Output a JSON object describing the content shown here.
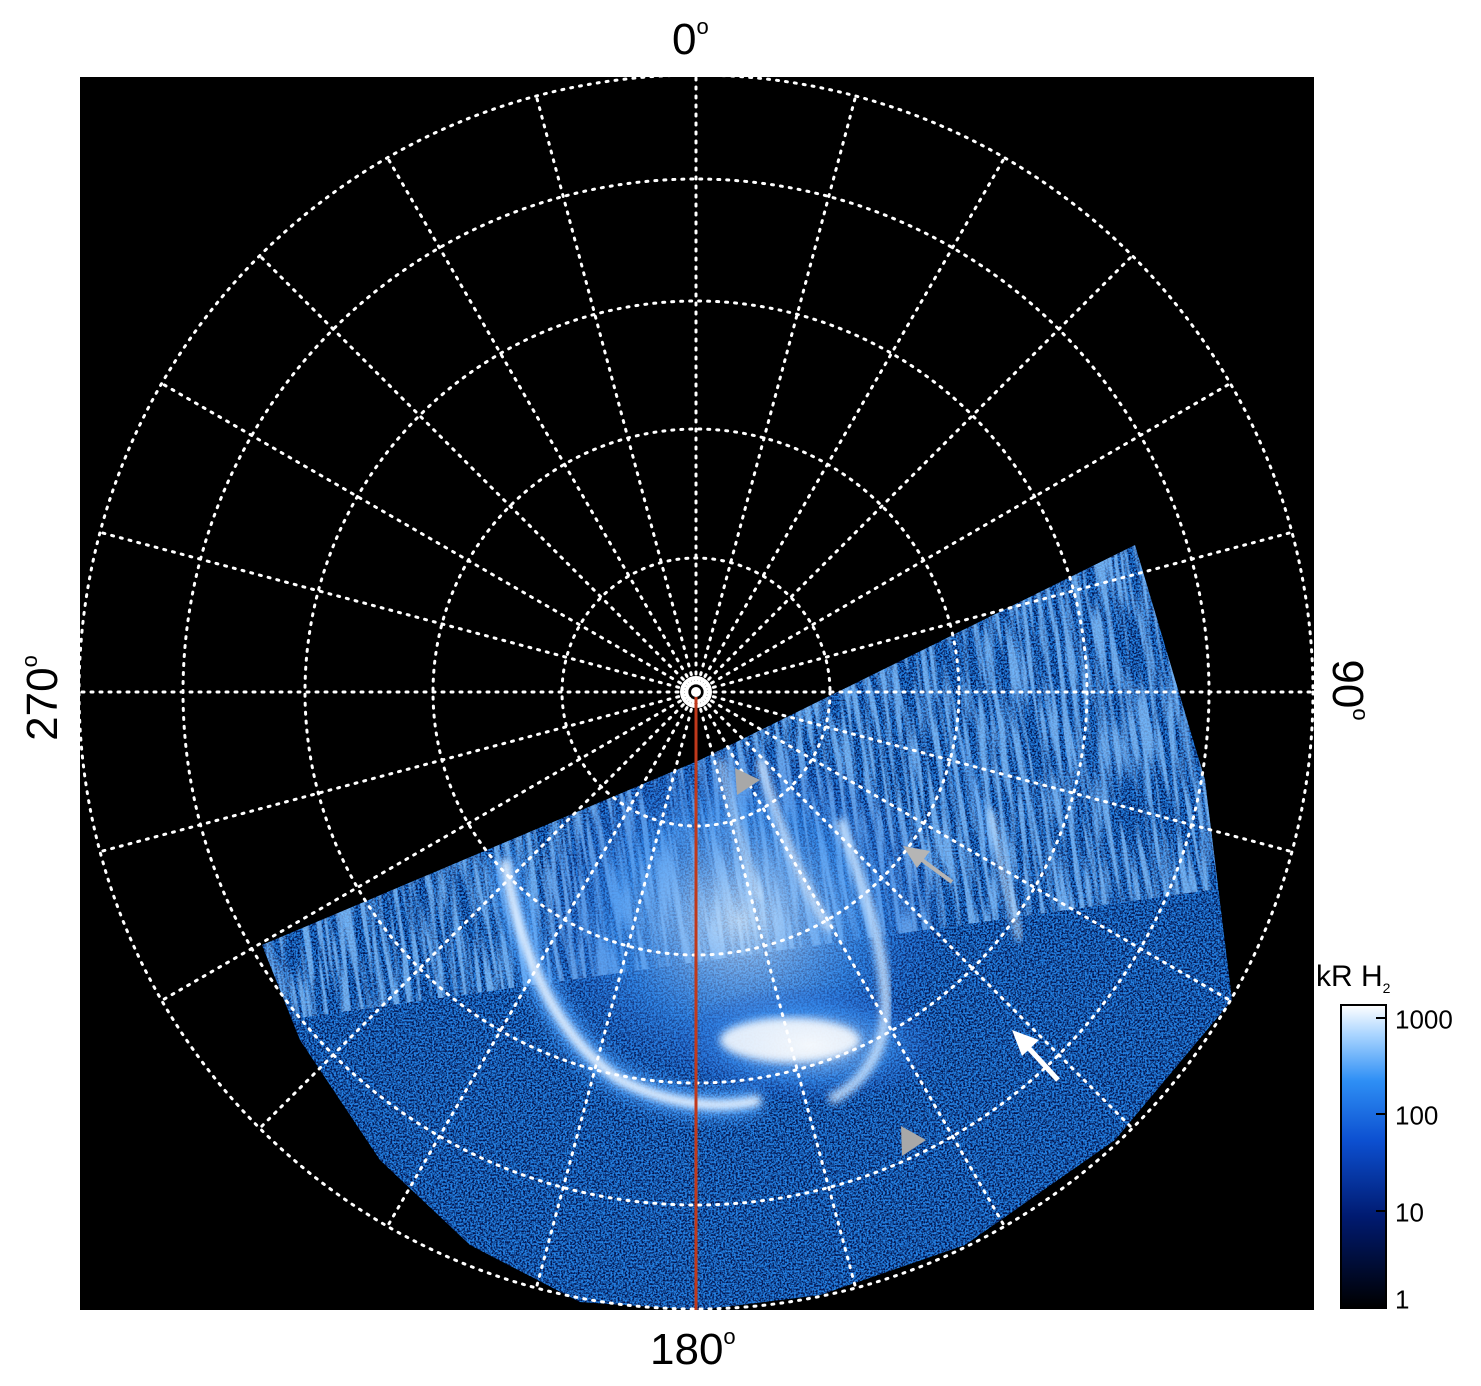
{
  "axis_labels": {
    "top": "0",
    "bottom": "180",
    "left": "270",
    "right": "90",
    "degree_symbol": "o"
  },
  "colorbar": {
    "title_main": "kR H",
    "title_sub": "2",
    "ticks": [
      {
        "label": "1000",
        "value": 1000
      },
      {
        "label": "100",
        "value": 100
      },
      {
        "label": "10",
        "value": 10
      },
      {
        "label": "1",
        "value": 1
      }
    ],
    "scale": "log"
  },
  "colors": {
    "background": "#000000",
    "grid": "#ffffff",
    "meridian_line": "#c0391b",
    "arrow_white": "#ffffff",
    "arrow_gray": "#b5b5b5",
    "aurora_dark": "#001a66",
    "aurora_mid": "#1670e6",
    "aurora_bright": "#e9f4ff"
  },
  "grid": {
    "style": "dotted",
    "rings": 5,
    "spokes_deg_step": 15
  },
  "icons": [
    "arrow-white-icon",
    "arrow-gray-icon",
    "triangle-gray-icon",
    "pole-marker-icon"
  ]
}
